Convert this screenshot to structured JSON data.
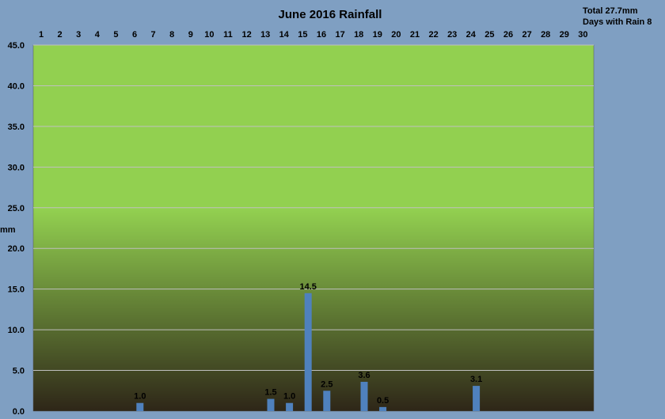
{
  "chart_data": {
    "type": "bar",
    "title": "June 2016 Rainfall",
    "summary": [
      "Total 27.7mm",
      "Days with Rain 8"
    ],
    "ylabel": "mm",
    "xlabel": "",
    "ylim": [
      0,
      45
    ],
    "yticks": [
      "0.0",
      "5.0",
      "10.0",
      "15.0",
      "20.0",
      "25.0",
      "30.0",
      "35.0",
      "40.0",
      "45.0"
    ],
    "categories": [
      "1",
      "2",
      "3",
      "4",
      "5",
      "6",
      "7",
      "8",
      "9",
      "10",
      "11",
      "12",
      "13",
      "14",
      "15",
      "16",
      "17",
      "18",
      "19",
      "20",
      "21",
      "22",
      "23",
      "24",
      "25",
      "26",
      "27",
      "28",
      "29",
      "30"
    ],
    "values": [
      0,
      0,
      0,
      0,
      0,
      1.0,
      0,
      0,
      0,
      0,
      0,
      0,
      1.5,
      1.0,
      14.5,
      2.5,
      0,
      3.6,
      0.5,
      0,
      0,
      0,
      0,
      3.1,
      0,
      0,
      0,
      0,
      0,
      0
    ],
    "labels": [
      "",
      "",
      "",
      "",
      "",
      "1.0",
      "",
      "",
      "",
      "",
      "",
      "",
      "1.5",
      "1.0",
      "14.5",
      "2.5",
      "",
      "3.6",
      "0.5",
      "",
      "",
      "",
      "",
      "3.1",
      "",
      "",
      "",
      "",
      "",
      ""
    ],
    "grid": true,
    "x_axis_position": "top",
    "colors": {
      "bar": "#4f81bd",
      "background": "#7f9fc2",
      "plot_top": "#92d050",
      "plot_bottom": "#2e2618",
      "grid": "#bfbfbf"
    }
  }
}
